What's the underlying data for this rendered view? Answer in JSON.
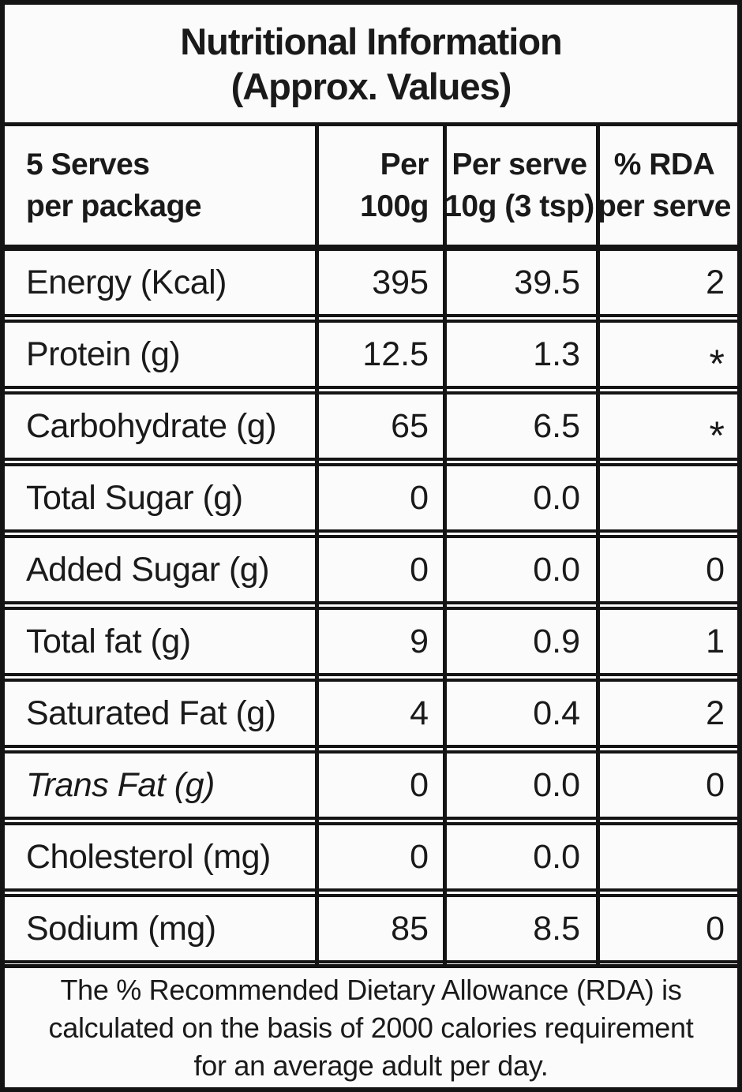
{
  "title": {
    "line1": "Nutritional Information",
    "line2": "(Approx. Values)"
  },
  "header": {
    "col1_line1": "5 Serves",
    "col1_line2": "per package",
    "col2_line1": "Per",
    "col2_line2": "100g",
    "col3_line1": "Per serve",
    "col3_line2": "10g (3 tsp)",
    "col4_line1": "% RDA",
    "col4_line2": "per serve"
  },
  "rows": [
    {
      "label": "Energy (Kcal)",
      "per100g": "395",
      "per_serve": "39.5",
      "rda": "2"
    },
    {
      "label": "Protein (g)",
      "per100g": "12.5",
      "per_serve": "1.3",
      "rda": "*"
    },
    {
      "label": "Carbohydrate (g)",
      "per100g": "65",
      "per_serve": "6.5",
      "rda": "*"
    },
    {
      "label": "Total Sugar (g)",
      "per100g": "0",
      "per_serve": "0.0",
      "rda": ""
    },
    {
      "label": "Added Sugar (g)",
      "per100g": "0",
      "per_serve": "0.0",
      "rda": "0"
    },
    {
      "label": "Total fat (g)",
      "per100g": "9",
      "per_serve": "0.9",
      "rda": "1"
    },
    {
      "label": "Saturated Fat (g)",
      "per100g": "4",
      "per_serve": "0.4",
      "rda": "2"
    },
    {
      "label": "Trans Fat (g)",
      "per100g": "0",
      "per_serve": "0.0",
      "rda": "0"
    },
    {
      "label": "Cholesterol (mg)",
      "per100g": "0",
      "per_serve": "0.0",
      "rda": ""
    },
    {
      "label": "Sodium (mg)",
      "per100g": "85",
      "per_serve": "8.5",
      "rda": "0"
    }
  ],
  "footnote_lines": [
    "The % Recommended Dietary Allowance (RDA) is",
    "calculated on the basis of 2000 calories requirement",
    "for an average adult per day."
  ],
  "colors": {
    "border": "#141414",
    "text": "#1a1a1a",
    "background": "#fbfbfb"
  }
}
